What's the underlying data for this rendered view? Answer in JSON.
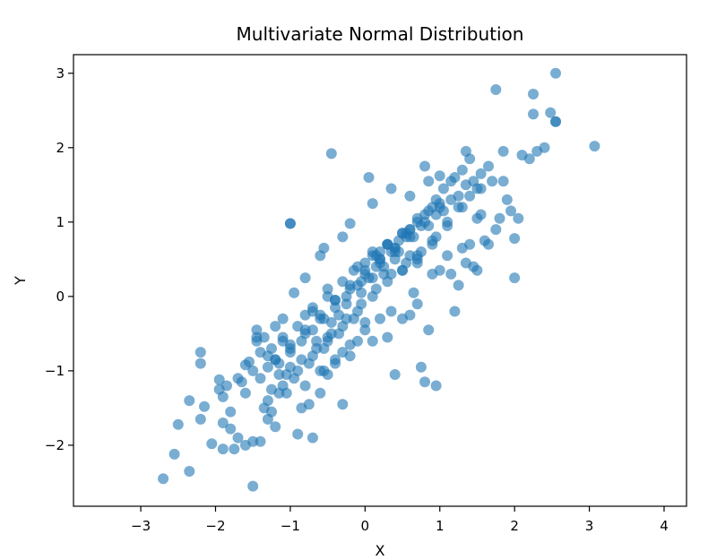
{
  "chart_data": {
    "type": "scatter",
    "title": "Multivariate Normal Distribution",
    "xlabel": "X",
    "ylabel": "Y",
    "xlim": [
      -3.9,
      4.3
    ],
    "ylim": [
      -2.82,
      3.25
    ],
    "xticks": [
      -3,
      -2,
      -1,
      0,
      1,
      2,
      3,
      4
    ],
    "yticks": [
      -2,
      -1,
      0,
      1,
      2,
      3
    ],
    "xtick_labels": [
      "−3",
      "−2",
      "−1",
      "0",
      "1",
      "2",
      "3",
      "4"
    ],
    "ytick_labels": [
      "−2",
      "−1",
      "0",
      "1",
      "2",
      "3"
    ],
    "grid": false,
    "marker_color": "#1f77b4",
    "marker_alpha": 0.6,
    "x": [
      -2.7,
      -2.55,
      -2.5,
      -2.35,
      -2.35,
      -2.2,
      -2.2,
      -2.2,
      -2.15,
      -2.05,
      -1.95,
      -1.95,
      -1.9,
      -1.9,
      -1.9,
      -1.85,
      -1.8,
      -1.8,
      -1.75,
      -1.7,
      -1.7,
      -1.65,
      -1.6,
      -1.6,
      -1.55,
      -1.5,
      -1.5,
      -1.45,
      -1.45,
      -1.45,
      -1.4,
      -1.4,
      -1.35,
      -1.3,
      -1.3,
      -1.25,
      -1.25,
      -1.2,
      -1.2,
      -1.15,
      -1.1,
      -1.05,
      -1.0,
      -1.0,
      -0.9,
      -0.85,
      -0.8,
      -0.75,
      -0.7,
      -0.6,
      -0.55,
      -0.5,
      -0.4,
      -0.3,
      -0.2,
      -0.1,
      0.0,
      0.1,
      0.2,
      0.3,
      0.35,
      0.4,
      0.5,
      0.6,
      0.65,
      0.7,
      0.75,
      0.8,
      0.85,
      0.9,
      0.95,
      1.0,
      1.1,
      1.15,
      1.2,
      1.25,
      1.3,
      1.35,
      1.4,
      1.45,
      1.5,
      1.5,
      1.55,
      1.6,
      1.65,
      1.75,
      1.8,
      1.85,
      1.9,
      1.95,
      2.0,
      2.0,
      2.05,
      2.1,
      2.2,
      2.25,
      2.3,
      2.4,
      2.55,
      2.55,
      3.07,
      2.25,
      2.48,
      1.75,
      2.55,
      -0.45,
      1.0,
      0.8,
      0.85,
      -1.0,
      -0.55,
      -0.2,
      0.05,
      0.35,
      0.6,
      0.1,
      -0.3,
      -0.6,
      -0.8,
      -0.95,
      -1.1,
      -0.7,
      -0.5,
      -0.35,
      -0.15,
      0.0,
      0.15,
      0.25,
      0.45,
      0.55,
      0.7,
      0.85,
      0.95,
      1.05,
      1.15,
      1.3,
      1.4,
      -0.65,
      -0.45,
      -0.25,
      -0.05,
      0.2,
      0.4,
      0.6,
      0.8,
      1.0,
      1.2,
      1.35,
      -1.2,
      -1.0,
      -0.8,
      -0.6,
      -0.4,
      -0.2,
      0.0,
      0.2,
      0.4,
      0.6,
      0.8,
      1.0,
      -1.5,
      -1.3,
      -1.1,
      -0.9,
      -0.7,
      -0.5,
      -0.3,
      -0.1,
      0.1,
      0.3,
      0.5,
      0.7,
      0.9,
      -1.6,
      -1.4,
      -1.2,
      -1.0,
      -0.8,
      -0.6,
      -0.4,
      -0.2,
      0.0,
      0.2,
      0.4,
      0.6,
      -1.3,
      -1.1,
      -0.9,
      -0.7,
      -0.5,
      -0.3,
      -0.1,
      0.1,
      0.3,
      0.5,
      0.7,
      0.9,
      1.1,
      1.3,
      1.5,
      1.7,
      0.2,
      0.3,
      0.4,
      0.5,
      0.6,
      0.7,
      0.05,
      -0.1,
      -0.25,
      -0.4,
      -0.55,
      -0.7,
      -0.85,
      -1.0,
      -1.15,
      0.15,
      0.35,
      0.55,
      0.75,
      0.95,
      1.15,
      1.35,
      1.55,
      -0.15,
      -0.35,
      -0.55,
      -0.75,
      -0.95,
      -1.15,
      -1.35,
      -0.05,
      0.1,
      0.25,
      0.45,
      0.65,
      0.85,
      1.05,
      1.25,
      1.45,
      1.65,
      1.85,
      -1.25,
      -1.05,
      -0.85,
      -0.65,
      -0.45,
      -0.25,
      -0.05,
      0.15,
      0.35,
      0.55,
      0.75,
      0.95,
      1.1,
      1.25,
      1.4,
      1.55,
      0.0,
      -0.2,
      -0.4,
      -0.6,
      -0.8,
      0.3,
      0.5,
      0.7,
      0.9,
      -0.3,
      -0.5,
      0.1
    ],
    "y": [
      -2.45,
      -2.12,
      -1.72,
      -1.4,
      -2.35,
      -0.75,
      -0.9,
      -1.65,
      -1.48,
      -1.98,
      -1.12,
      -1.25,
      -1.35,
      -1.7,
      -2.05,
      -1.2,
      -1.78,
      -1.55,
      -2.05,
      -1.1,
      -1.9,
      -1.15,
      -0.92,
      -2.0,
      -0.88,
      -1.95,
      -2.55,
      -0.6,
      -0.45,
      -0.55,
      -0.75,
      -1.95,
      -0.55,
      -0.95,
      -1.65,
      -0.7,
      -1.55,
      -0.4,
      -1.75,
      -1.05,
      -0.55,
      -1.3,
      -0.95,
      0.98,
      -1.85,
      -1.5,
      -0.25,
      -1.45,
      -1.9,
      -1.3,
      -1.0,
      -1.05,
      -0.9,
      -1.45,
      -0.8,
      -0.6,
      -0.35,
      -0.6,
      -0.3,
      -0.55,
      -0.2,
      -1.05,
      -0.3,
      -0.25,
      0.05,
      -0.1,
      -0.95,
      -1.15,
      -0.45,
      0.3,
      -1.2,
      0.35,
      0.55,
      0.3,
      -0.2,
      0.15,
      0.65,
      0.45,
      0.7,
      0.4,
      0.35,
      1.05,
      1.1,
      0.75,
      0.7,
      0.9,
      1.05,
      1.55,
      1.3,
      1.15,
      0.25,
      0.78,
      1.05,
      1.9,
      1.85,
      2.45,
      1.95,
      2.0,
      2.35,
      3.0,
      2.02,
      2.72,
      2.47,
      2.78,
      2.35,
      1.92,
      1.62,
      1.75,
      1.55,
      0.98,
      0.65,
      0.98,
      1.6,
      1.45,
      1.35,
      1.25,
      0.8,
      0.55,
      0.25,
      0.05,
      -0.3,
      -0.15,
      0.1,
      -0.25,
      0.35,
      0.45,
      0.55,
      0.3,
      0.75,
      0.85,
      1.0,
      1.15,
      1.3,
      1.45,
      1.55,
      1.7,
      1.85,
      -0.6,
      -0.35,
      -0.1,
      0.2,
      0.5,
      0.65,
      0.9,
      1.1,
      1.25,
      1.6,
      1.95,
      -0.85,
      -0.7,
      -0.5,
      -0.3,
      -0.05,
      0.1,
      0.3,
      0.45,
      0.6,
      0.9,
      1.0,
      1.2,
      -1.0,
      -0.8,
      -0.6,
      -0.4,
      -0.2,
      0.0,
      0.2,
      0.4,
      0.55,
      0.7,
      0.85,
      1.05,
      1.2,
      -1.3,
      -1.1,
      -0.85,
      -0.65,
      -0.45,
      -0.25,
      -0.05,
      0.15,
      0.35,
      0.5,
      0.65,
      0.8,
      -1.4,
      -1.2,
      -1.0,
      -0.8,
      -0.6,
      -0.4,
      -0.2,
      0.0,
      0.2,
      0.35,
      0.5,
      0.7,
      0.95,
      1.2,
      1.45,
      1.55,
      0.6,
      0.7,
      0.5,
      0.35,
      0.55,
      0.45,
      0.25,
      0.15,
      0.0,
      -0.15,
      -0.3,
      -0.45,
      -0.6,
      -0.75,
      -0.9,
      0.4,
      0.6,
      0.8,
      0.95,
      1.1,
      1.3,
      1.5,
      1.65,
      -0.3,
      -0.5,
      -0.7,
      -0.9,
      -1.1,
      -1.3,
      -1.5,
      0.05,
      0.25,
      0.4,
      0.6,
      0.8,
      0.95,
      1.15,
      1.35,
      1.55,
      1.75,
      1.95,
      -1.25,
      -1.05,
      -0.85,
      -0.7,
      -0.5,
      -0.3,
      -0.1,
      0.1,
      0.3,
      0.45,
      0.6,
      0.8,
      1.0,
      1.2,
      1.35,
      1.45,
      -0.45,
      -0.65,
      -0.85,
      -1.0,
      -1.2,
      0.7,
      0.85,
      0.55,
      0.75,
      -0.75,
      -0.55,
      0.6
    ]
  }
}
